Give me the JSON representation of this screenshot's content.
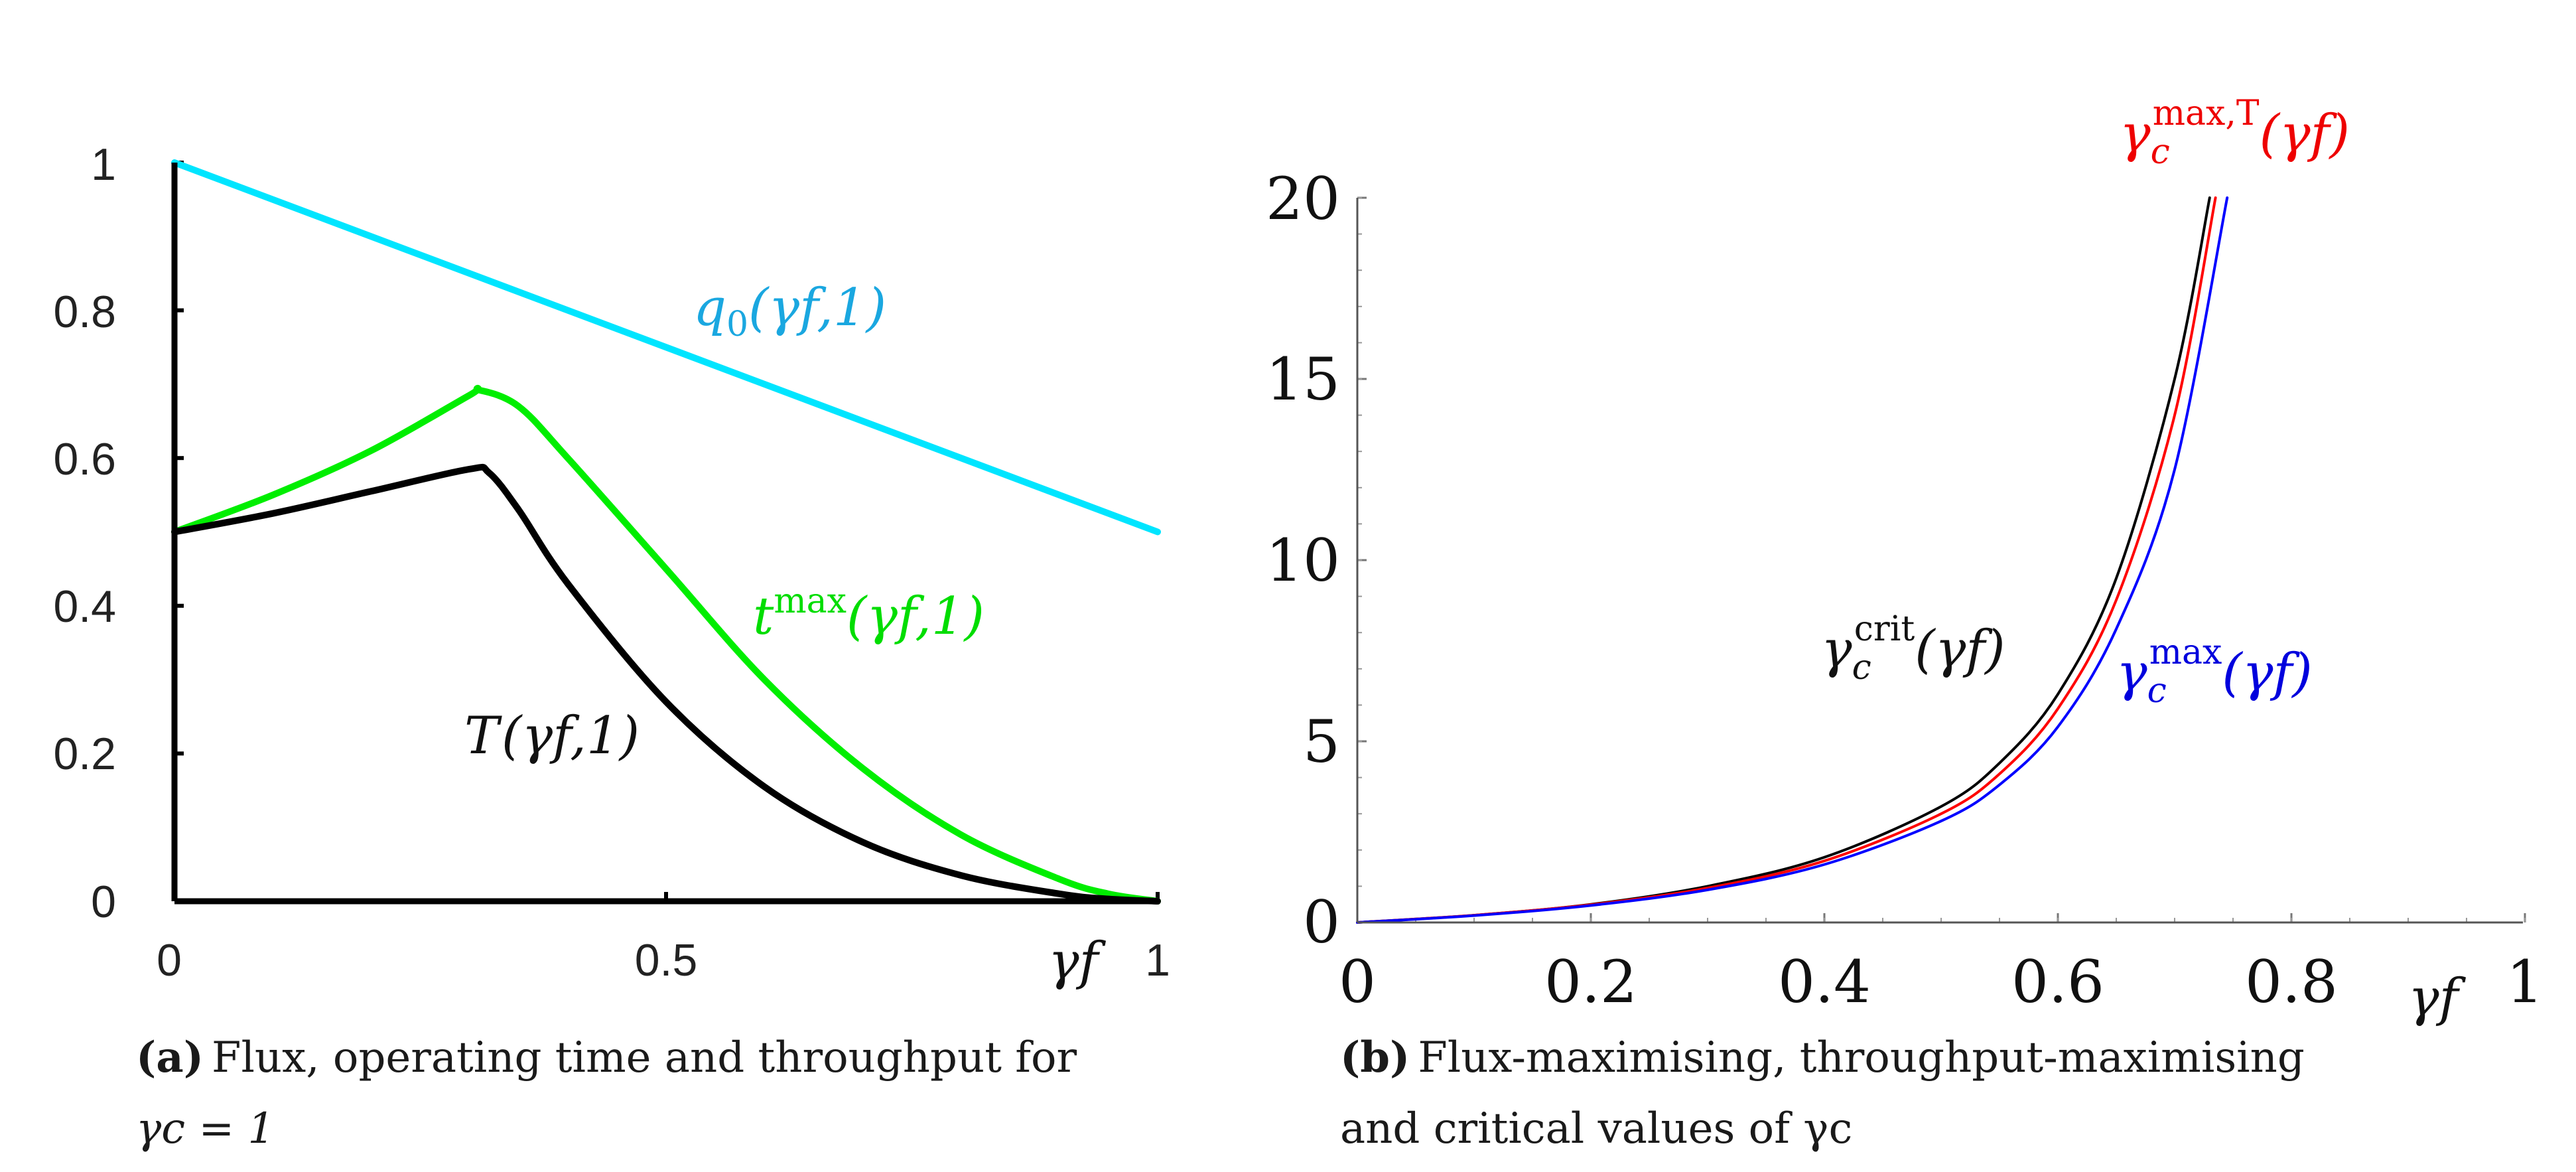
{
  "chart_data": [
    {
      "id": "a",
      "type": "line",
      "xlim": [
        0,
        1
      ],
      "ylim": [
        0,
        1
      ],
      "xticks": [
        "0",
        "0.5",
        "1"
      ],
      "yticks": [
        "0",
        "0.2",
        "0.4",
        "0.6",
        "0.8",
        "1"
      ],
      "xlabel": "γf",
      "series": [
        {
          "name": "q0(γf,1)",
          "color": "#00e5ff",
          "x": [
            0,
            1
          ],
          "y": [
            1,
            0.5
          ]
        },
        {
          "name": "tmax(γf,1)",
          "color": "#00ee00",
          "x": [
            0,
            0.1,
            0.2,
            0.3,
            0.31,
            0.35,
            0.4,
            0.5,
            0.6,
            0.7,
            0.8,
            0.9,
            0.95,
            1.0
          ],
          "y": [
            0.5,
            0.55,
            0.61,
            0.685,
            0.692,
            0.67,
            0.6,
            0.45,
            0.3,
            0.18,
            0.09,
            0.03,
            0.01,
            0.0
          ]
        },
        {
          "name": "T(γf,1)",
          "color": "#000000",
          "x": [
            0,
            0.1,
            0.2,
            0.3,
            0.32,
            0.35,
            0.4,
            0.5,
            0.6,
            0.7,
            0.8,
            0.9,
            0.95,
            1.0
          ],
          "y": [
            0.5,
            0.525,
            0.555,
            0.585,
            0.58,
            0.53,
            0.43,
            0.27,
            0.155,
            0.08,
            0.035,
            0.01,
            0.003,
            0.0
          ]
        }
      ],
      "labels": {
        "q0": {
          "main": "q",
          "sub": "0",
          "args": "(γf,1)"
        },
        "tmax": {
          "main": "t",
          "sup": "max",
          "args": "(γf,1)"
        },
        "T": {
          "main": "T",
          "args": "(γf,1)"
        }
      },
      "caption": {
        "tag": "(a)",
        "line1": "Flux, operating time and throughput for",
        "line2": "γc = 1"
      }
    },
    {
      "id": "b",
      "type": "line",
      "xlim": [
        0,
        1
      ],
      "ylim": [
        0,
        20
      ],
      "xticks": [
        "0",
        "0.2",
        "0.4",
        "0.6",
        "0.8",
        "1"
      ],
      "yticks": [
        "0",
        "5",
        "10",
        "15",
        "20"
      ],
      "xlabel": "γf",
      "series": [
        {
          "name": "γc crit(γf)",
          "color": "#000000",
          "x": [
            0,
            0.1,
            0.2,
            0.3,
            0.4,
            0.5,
            0.55,
            0.6,
            0.65,
            0.7,
            0.73
          ],
          "y": [
            0,
            0.2,
            0.5,
            1.0,
            1.8,
            3.2,
            4.4,
            6.3,
            9.5,
            15.0,
            20.0
          ]
        },
        {
          "name": "γc max,T(γf)",
          "color": "#ff0000",
          "x": [
            0,
            0.1,
            0.2,
            0.3,
            0.4,
            0.5,
            0.55,
            0.6,
            0.65,
            0.7,
            0.735
          ],
          "y": [
            0,
            0.2,
            0.49,
            0.95,
            1.7,
            3.0,
            4.1,
            5.9,
            8.9,
            14.0,
            20.0
          ]
        },
        {
          "name": "γc max(γf)",
          "color": "#0000ff",
          "x": [
            0,
            0.1,
            0.2,
            0.3,
            0.4,
            0.5,
            0.55,
            0.6,
            0.65,
            0.7,
            0.745
          ],
          "y": [
            0,
            0.19,
            0.47,
            0.9,
            1.6,
            2.8,
            3.8,
            5.4,
            8.1,
            12.5,
            20.0
          ]
        }
      ],
      "labels": {
        "crit": {
          "main": "γ",
          "sub": "c",
          "sup": "crit",
          "args": "(γf)"
        },
        "maxT": {
          "main": "γ",
          "sub": "c",
          "sup": "max,T",
          "args": "(γf)"
        },
        "max": {
          "main": "γ",
          "sub": "c",
          "sup": "max",
          "args": "(γf)"
        }
      },
      "caption": {
        "tag": "(b)",
        "line1": "Flux-maximising, throughput-maximising",
        "line2": "and critical values of γc"
      }
    }
  ]
}
